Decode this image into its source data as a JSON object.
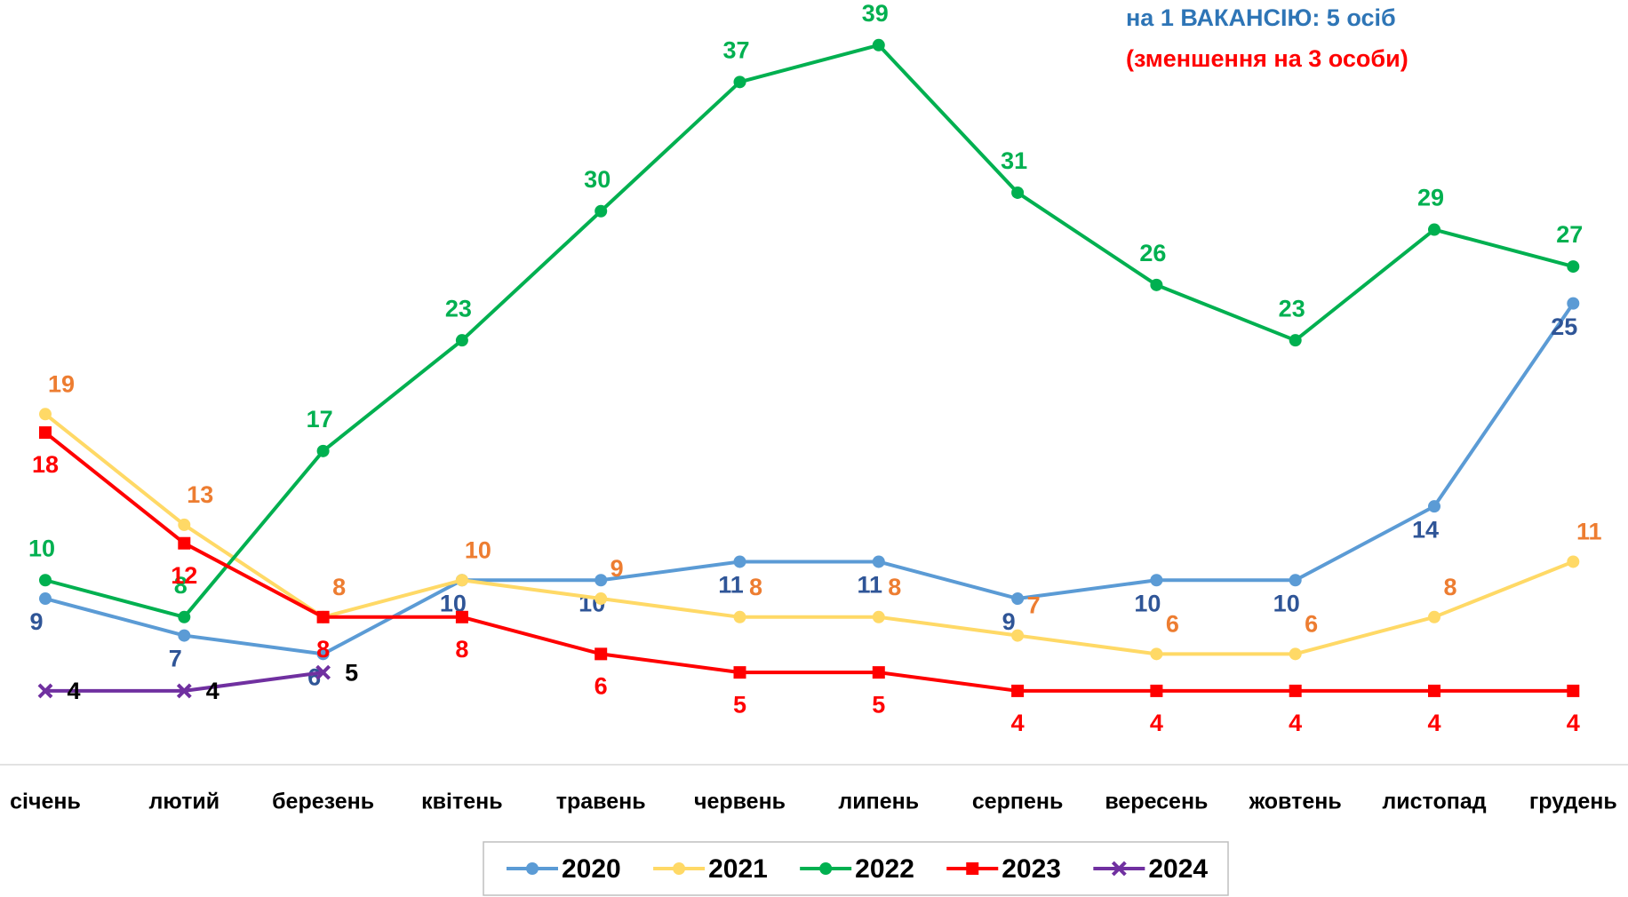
{
  "chart_data": {
    "type": "line",
    "annotations": [
      "на 1 ВАКАНСІЮ: 5 осіб",
      "(зменшення на 3 особи)"
    ],
    "annotation_colors": [
      "#2e75b6",
      "#ff0000"
    ],
    "categories": [
      "січень",
      "лютий",
      "березень",
      "квітень",
      "травень",
      "червень",
      "липень",
      "серпень",
      "вересень",
      "жовтень",
      "листопад",
      "грудень"
    ],
    "series": [
      {
        "name": "2020",
        "color": "#5b9bd5",
        "label_color": "#2f5597",
        "marker": "circle",
        "values": [
          9,
          7,
          6,
          10,
          10,
          11,
          11,
          9,
          10,
          10,
          14,
          25
        ]
      },
      {
        "name": "2021",
        "color": "#ffd966",
        "label_color": "#ed7d31",
        "marker": "circle",
        "values": [
          19,
          13,
          8,
          10,
          9,
          8,
          8,
          7,
          6,
          6,
          8,
          11
        ]
      },
      {
        "name": "2022",
        "color": "#00b050",
        "label_color": "#00b050",
        "marker": "circle",
        "values": [
          10,
          8,
          17,
          23,
          30,
          37,
          39,
          31,
          26,
          23,
          29,
          27
        ]
      },
      {
        "name": "2023",
        "color": "#ff0000",
        "label_color": "#ff0000",
        "marker": "square",
        "values": [
          18,
          12,
          8,
          8,
          6,
          5,
          5,
          4,
          4,
          4,
          4,
          4
        ]
      },
      {
        "name": "2024",
        "color": "#7030a0",
        "label_color": "#000000",
        "marker": "x",
        "values": [
          4,
          4,
          5,
          null,
          null,
          null,
          null,
          null,
          null,
          null,
          null,
          null
        ]
      }
    ],
    "ylim": [
      0,
      40
    ],
    "legend": "bottom"
  }
}
